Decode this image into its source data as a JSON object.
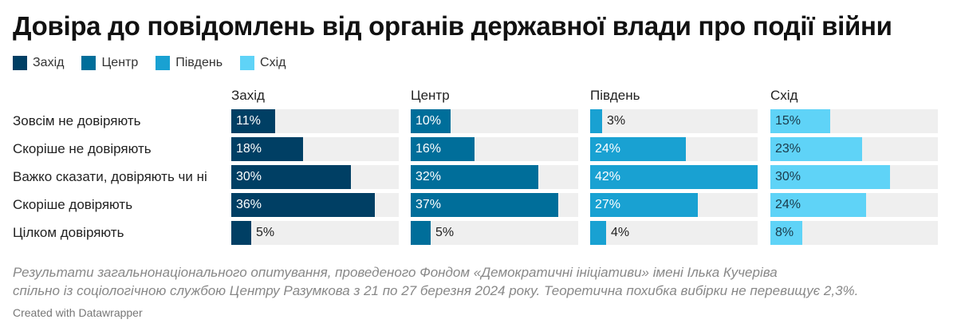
{
  "title": "Довіра до повідомлень від органів державної влади про події війни",
  "legend": [
    {
      "label": "Захід",
      "color": "#003f64"
    },
    {
      "label": "Центр",
      "color": "#006e9a"
    },
    {
      "label": "Південь",
      "color": "#19a1d2"
    },
    {
      "label": "Схід",
      "color": "#5fd3f7"
    }
  ],
  "chart_data": {
    "type": "bar",
    "orientation": "horizontal",
    "layout": "small-multiples",
    "categories": [
      "Зовсім не довіряють",
      "Скоріше не довіряють",
      "Важко сказати, довіряють чи ні",
      "Скоріше довіряють",
      "Цілком довіряють"
    ],
    "series": [
      {
        "name": "Захід",
        "color": "#003f64",
        "values": [
          11,
          18,
          30,
          36,
          5
        ],
        "labels": [
          "11%",
          "18%",
          "30%",
          "36%",
          "5%"
        ]
      },
      {
        "name": "Центр",
        "color": "#006e9a",
        "values": [
          10,
          16,
          32,
          37,
          5
        ],
        "labels": [
          "10%",
          "16%",
          "32%",
          "37%",
          "5%"
        ]
      },
      {
        "name": "Південь",
        "color": "#19a1d2",
        "values": [
          3,
          24,
          42,
          27,
          4
        ],
        "labels": [
          "3%",
          "24%",
          "42%",
          "27%",
          "4%"
        ]
      },
      {
        "name": "Схід",
        "color": "#5fd3f7",
        "values": [
          15,
          23,
          30,
          24,
          8
        ],
        "labels": [
          "15%",
          "23%",
          "30%",
          "24%",
          "8%"
        ]
      }
    ],
    "xlim": [
      0,
      42
    ],
    "grid": false,
    "legend_position": "top-left"
  },
  "notes": [
    "Результати загальнонаціонального опитування, проведеного Фондом «Демократичні ініціативи» імені Ілька Кучеріва",
    "спільно із соціологічною службою Центру Разумкова з 21 по 27 березня 2024 року. Теоретична похибка вибірки не перевищує 2,3%."
  ],
  "credit": "Created with Datawrapper"
}
